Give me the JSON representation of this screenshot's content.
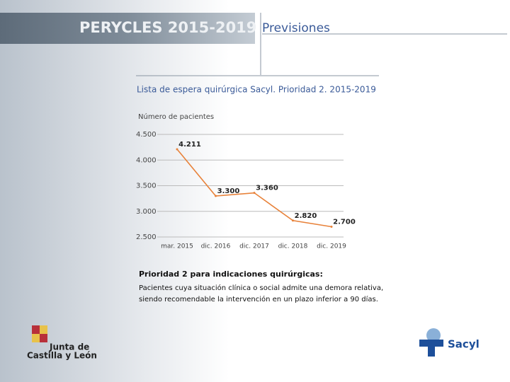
{
  "header": {
    "title": "PERYCLES 2015-2019",
    "section": "Previsiones"
  },
  "chart_data": {
    "type": "line",
    "title": "Lista de espera quirúrgica Sacyl. Prioridad 2. 2015-2019",
    "ylabel": "Número de pacientes",
    "categories": [
      "mar. 2015",
      "dic. 2016",
      "dic. 2017",
      "dic. 2018",
      "dic. 2019"
    ],
    "values": [
      4211,
      3300,
      3360,
      2820,
      2700
    ],
    "value_labels": [
      "4.211",
      "3.300",
      "3.360",
      "2.820",
      "2.700"
    ],
    "color": "#e8823a",
    "ylim": [
      2500,
      4500
    ],
    "yticks": [
      {
        "value": 2500,
        "label": "2.500"
      },
      {
        "value": 3000,
        "label": "3.000"
      },
      {
        "value": 3500,
        "label": "3.500"
      },
      {
        "value": 4000,
        "label": "4.000"
      },
      {
        "value": 4500,
        "label": "4.500"
      }
    ],
    "grid": true
  },
  "note": {
    "title": "Prioridad 2 para indicaciones quirúrgicas:",
    "lines": [
      "Pacientes cuya situación clínica o social admite una demora relativa,",
      "siendo recomendable la intervención en un plazo inferior a 90 días."
    ]
  },
  "logos": {
    "junta": [
      "Junta de",
      "Castilla y León"
    ],
    "sacyl": "Sacyl"
  }
}
